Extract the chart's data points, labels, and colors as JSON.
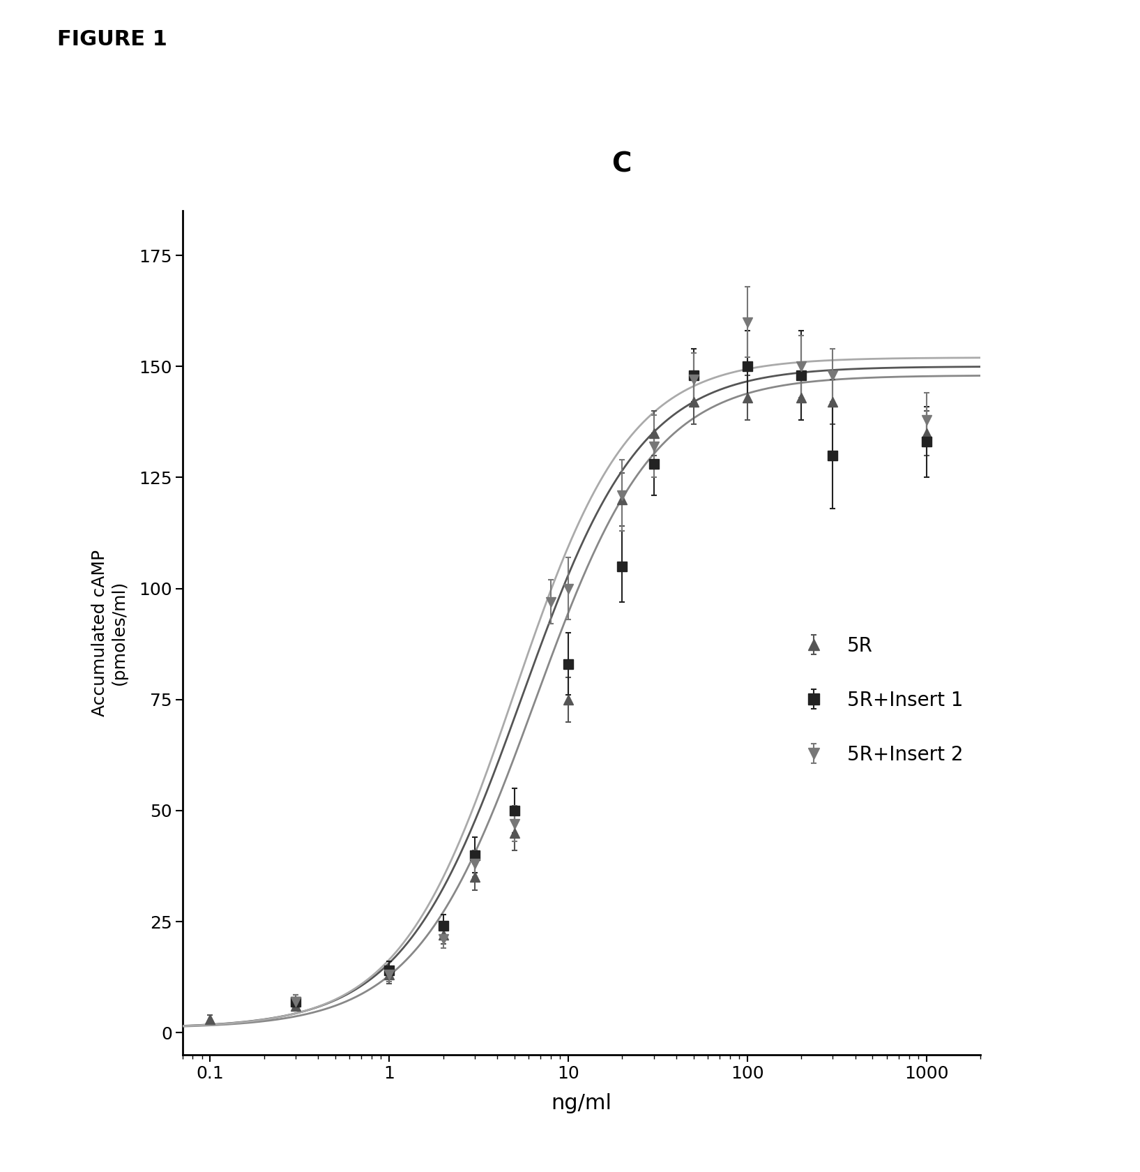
{
  "title": "C",
  "figure_label": "FIGURE 1",
  "xlabel": "ng/ml",
  "ylabel": "Accumulated cAMP\n(pmoles/ml)",
  "xlim": [
    0.07,
    2000
  ],
  "ylim": [
    -5,
    185
  ],
  "yticks": [
    0,
    25,
    50,
    75,
    100,
    125,
    150,
    175
  ],
  "background_color": "#ffffff",
  "series": [
    {
      "label": "5R",
      "color": "#555555",
      "marker": "^",
      "marker_size": 10,
      "data_x": [
        0.1,
        0.3,
        1.0,
        2.0,
        3.0,
        5.0,
        10.0,
        20.0,
        30.0,
        50.0,
        100.0,
        200.0,
        300.0,
        1000.0
      ],
      "data_y": [
        3.0,
        6.0,
        13.0,
        22.0,
        35.0,
        45.0,
        75.0,
        120.0,
        135.0,
        142.0,
        143.0,
        143.0,
        142.0,
        135.0
      ],
      "yerr": [
        1.0,
        1.0,
        2.0,
        2.0,
        3.0,
        4.0,
        5.0,
        6.0,
        5.0,
        5.0,
        5.0,
        5.0,
        5.0,
        5.0
      ],
      "ec50": 6.5,
      "top": 148.0,
      "bottom": 1.0,
      "hill": 1.3,
      "curve_color": "#888888"
    },
    {
      "label": "5R+Insert 1",
      "color": "#222222",
      "marker": "s",
      "marker_size": 10,
      "data_x": [
        0.3,
        1.0,
        2.0,
        3.0,
        5.0,
        10.0,
        20.0,
        30.0,
        50.0,
        100.0,
        200.0,
        300.0,
        1000.0
      ],
      "data_y": [
        7.0,
        14.0,
        24.0,
        40.0,
        50.0,
        83.0,
        105.0,
        128.0,
        148.0,
        150.0,
        148.0,
        130.0,
        133.0
      ],
      "yerr": [
        1.5,
        2.0,
        2.5,
        4.0,
        5.0,
        7.0,
        8.0,
        7.0,
        6.0,
        8.0,
        10.0,
        12.0,
        8.0
      ],
      "ec50": 5.5,
      "top": 150.0,
      "bottom": 1.0,
      "hill": 1.3,
      "curve_color": "#555555"
    },
    {
      "label": "5R+Insert 2",
      "color": "#777777",
      "marker": "v",
      "marker_size": 10,
      "data_x": [
        0.3,
        1.0,
        2.0,
        3.0,
        5.0,
        8.0,
        10.0,
        20.0,
        30.0,
        50.0,
        100.0,
        200.0,
        300.0,
        1000.0
      ],
      "data_y": [
        7.0,
        13.0,
        21.0,
        38.0,
        47.0,
        97.0,
        100.0,
        121.0,
        132.0,
        147.0,
        160.0,
        150.0,
        148.0,
        138.0
      ],
      "yerr": [
        1.5,
        1.5,
        2.0,
        3.0,
        4.0,
        5.0,
        7.0,
        8.0,
        7.0,
        6.0,
        8.0,
        7.0,
        6.0,
        6.0
      ],
      "ec50": 5.0,
      "top": 152.0,
      "bottom": 1.0,
      "hill": 1.35,
      "curve_color": "#aaaaaa"
    }
  ]
}
